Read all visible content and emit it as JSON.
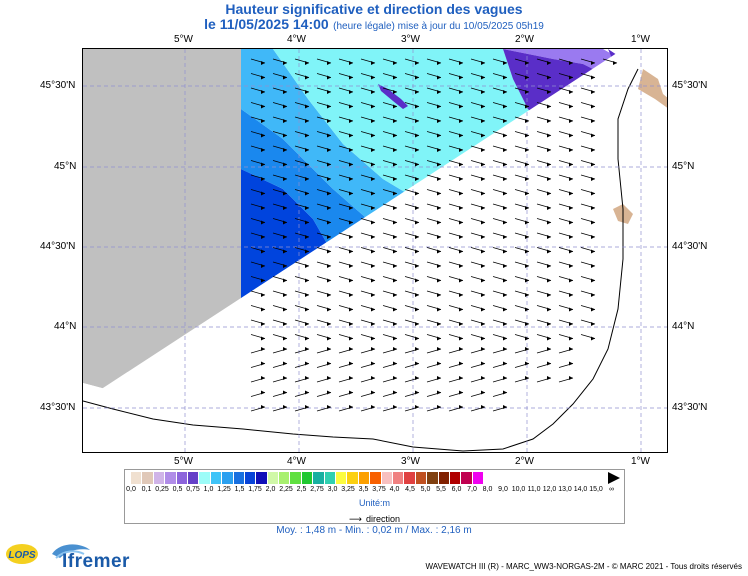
{
  "header": {
    "title": "Hauteur significative et direction des vagues",
    "date_label": "le 11/05/2025 14:00",
    "update_label": "(heure légale) mise à jour du 10/05/2025 05h19"
  },
  "map": {
    "lon_labels": [
      "5°W",
      "4°W",
      "3°W",
      "2°W",
      "1°W"
    ],
    "lat_labels": [
      "45°30'N",
      "45°N",
      "44°30'N",
      "44°N",
      "43°30'N"
    ],
    "lon_range": [
      -5.9,
      -0.75
    ],
    "lat_range": [
      43.25,
      45.75
    ],
    "wave_direction": "toward the east",
    "colors": {
      "land": "#c0c0c0",
      "coast_land": "#d8b494",
      "deep_blue": "#0044dd",
      "mid_blue": "#1a88ee",
      "light_blue": "#40b8f8",
      "cyan": "#80f4f8",
      "purple_light": "#9a7af0",
      "purple": "#5a2ec8"
    }
  },
  "legend": {
    "labels": [
      "0,0",
      "0,1",
      "0,25",
      "0,5",
      "0,75",
      "1,0",
      "1,25",
      "1,5",
      "1,75",
      "2,0",
      "2,25",
      "2,5",
      "2,75",
      "3,0",
      "3,25",
      "3,5",
      "3,75",
      "4,0",
      "4,5",
      "5,0",
      "5,5",
      "6,0",
      "7,0",
      "8,0",
      "9,0",
      "10,0",
      "11,0",
      "12,0",
      "13,0",
      "14,0",
      "15,0",
      "∞"
    ],
    "colors": [
      "#f0e0d0",
      "#e0c8b8",
      "#d0b4e8",
      "#b08ce8",
      "#8c64dc",
      "#6440c8",
      "#9cfcf8",
      "#40c4f8",
      "#2aa0f0",
      "#1870e0",
      "#0844d8",
      "#1010b8",
      "#d0f8a8",
      "#a8f070",
      "#60e040",
      "#20c830",
      "#18b0a0",
      "#30d0b0",
      "#fcfc40",
      "#fcd010",
      "#fca000",
      "#f86000",
      "#f8c0c0",
      "#f08080",
      "#e04040",
      "#c05020",
      "#804010",
      "#802000",
      "#b00000",
      "#c00050",
      "#f000f0"
    ],
    "unit": "Unité:m",
    "direction_label": "direction"
  },
  "stats": "Moy. : 1,48 m  -  Min. : 0,02 m / Max. : 2,16 m",
  "footer": {
    "lops_label": "LOPS",
    "ifremer_label": "Ifremer",
    "credits": "WAVEWATCH III (R) - MARC_WW3-NORGAS-2M - © MARC 2021 - Tous droits réservés"
  }
}
